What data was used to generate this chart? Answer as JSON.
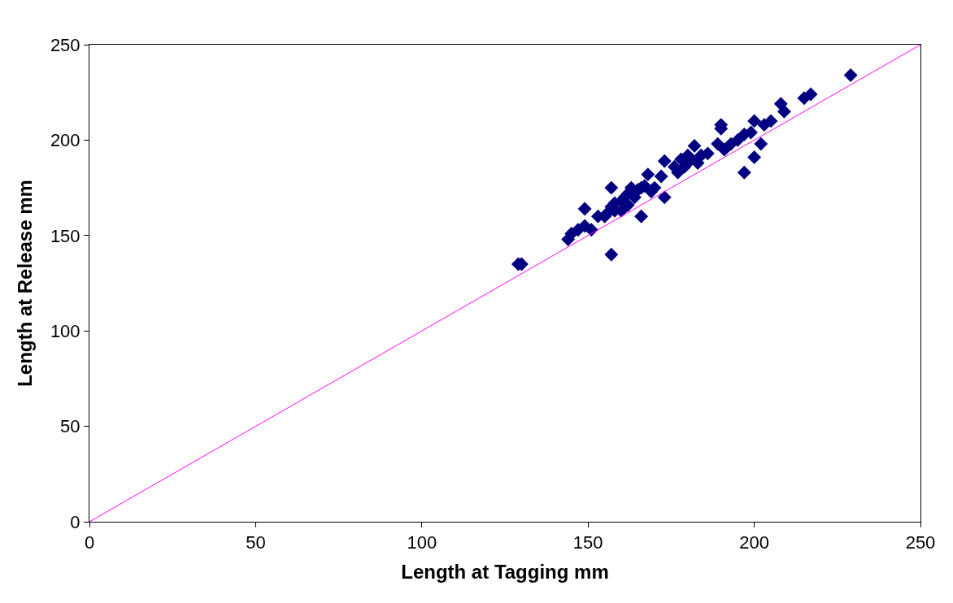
{
  "chart_data": {
    "type": "scatter",
    "xlabel": "Length at Tagging mm",
    "ylabel": "Length at Release mm",
    "xlim": [
      0,
      250
    ],
    "xticks": [
      0,
      50,
      100,
      150,
      200,
      250
    ],
    "ylim": [
      0,
      250
    ],
    "yticks": [
      0,
      50,
      100,
      150,
      200,
      250
    ],
    "marker": "diamond",
    "series": [
      {
        "color": "#000080",
        "x": [
          129,
          130,
          144,
          145,
          147,
          149,
          149,
          151,
          153,
          155,
          156,
          157,
          157,
          157,
          158,
          158,
          160,
          160,
          161,
          162,
          162,
          163,
          164,
          165,
          166,
          166,
          167,
          168,
          169,
          170,
          172,
          173,
          173,
          176,
          177,
          178,
          179,
          180,
          180,
          181,
          182,
          183,
          184,
          186,
          189,
          190,
          190,
          191,
          193,
          195,
          197,
          197,
          199,
          200,
          200,
          202,
          203,
          205,
          208,
          209,
          215,
          217,
          229
        ],
        "values": [
          135,
          135,
          148,
          151,
          153,
          155,
          164,
          153,
          160,
          160,
          162,
          165,
          175,
          140,
          163,
          167,
          168,
          163,
          170,
          172,
          166,
          175,
          170,
          174,
          160,
          175,
          176,
          182,
          173,
          175,
          181,
          170,
          189,
          186,
          183,
          190,
          186,
          192,
          188,
          190,
          197,
          188,
          192,
          193,
          198,
          206,
          208,
          195,
          198,
          200,
          203,
          183,
          204,
          191,
          210,
          198,
          208,
          210,
          219,
          215,
          222,
          224,
          234
        ]
      },
      {
        "type": "line",
        "color": "#ff00ff",
        "x": [
          0,
          250
        ],
        "values": [
          0,
          250
        ],
        "line_style": "solid",
        "marker": "none"
      }
    ]
  }
}
